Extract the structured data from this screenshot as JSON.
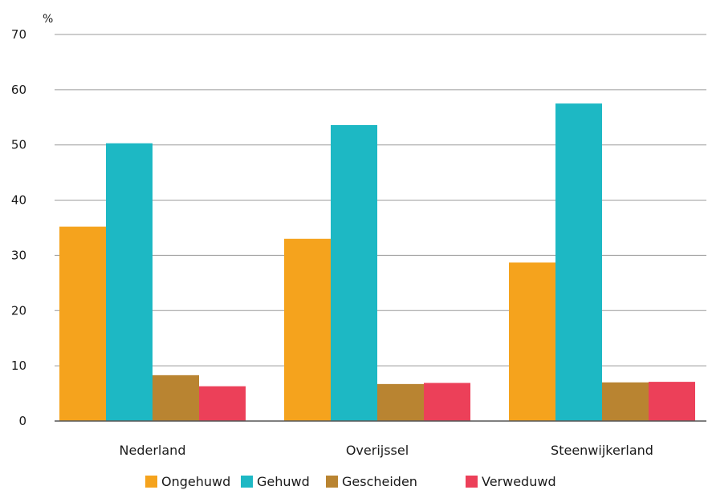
{
  "chart_data": {
    "type": "bar",
    "ylabel": "%",
    "ylim": [
      0,
      70
    ],
    "yticks": [
      0,
      10,
      20,
      30,
      40,
      50,
      60,
      70
    ],
    "grid": true,
    "legend_position": "bottom",
    "categories": [
      "Nederland",
      "Overijssel",
      "Steenwijkerland"
    ],
    "series": [
      {
        "name": "Ongehuwd",
        "color": "#F5A31D",
        "values": [
          35.2,
          33.0,
          28.7
        ]
      },
      {
        "name": "Gehuwd",
        "color": "#1DB8C4",
        "values": [
          50.3,
          53.6,
          57.5
        ]
      },
      {
        "name": "Gescheiden",
        "color": "#B98431",
        "values": [
          8.3,
          6.7,
          7.0
        ]
      },
      {
        "name": "Verweduwd",
        "color": "#EC4059",
        "values": [
          6.3,
          6.9,
          7.1
        ]
      }
    ]
  }
}
